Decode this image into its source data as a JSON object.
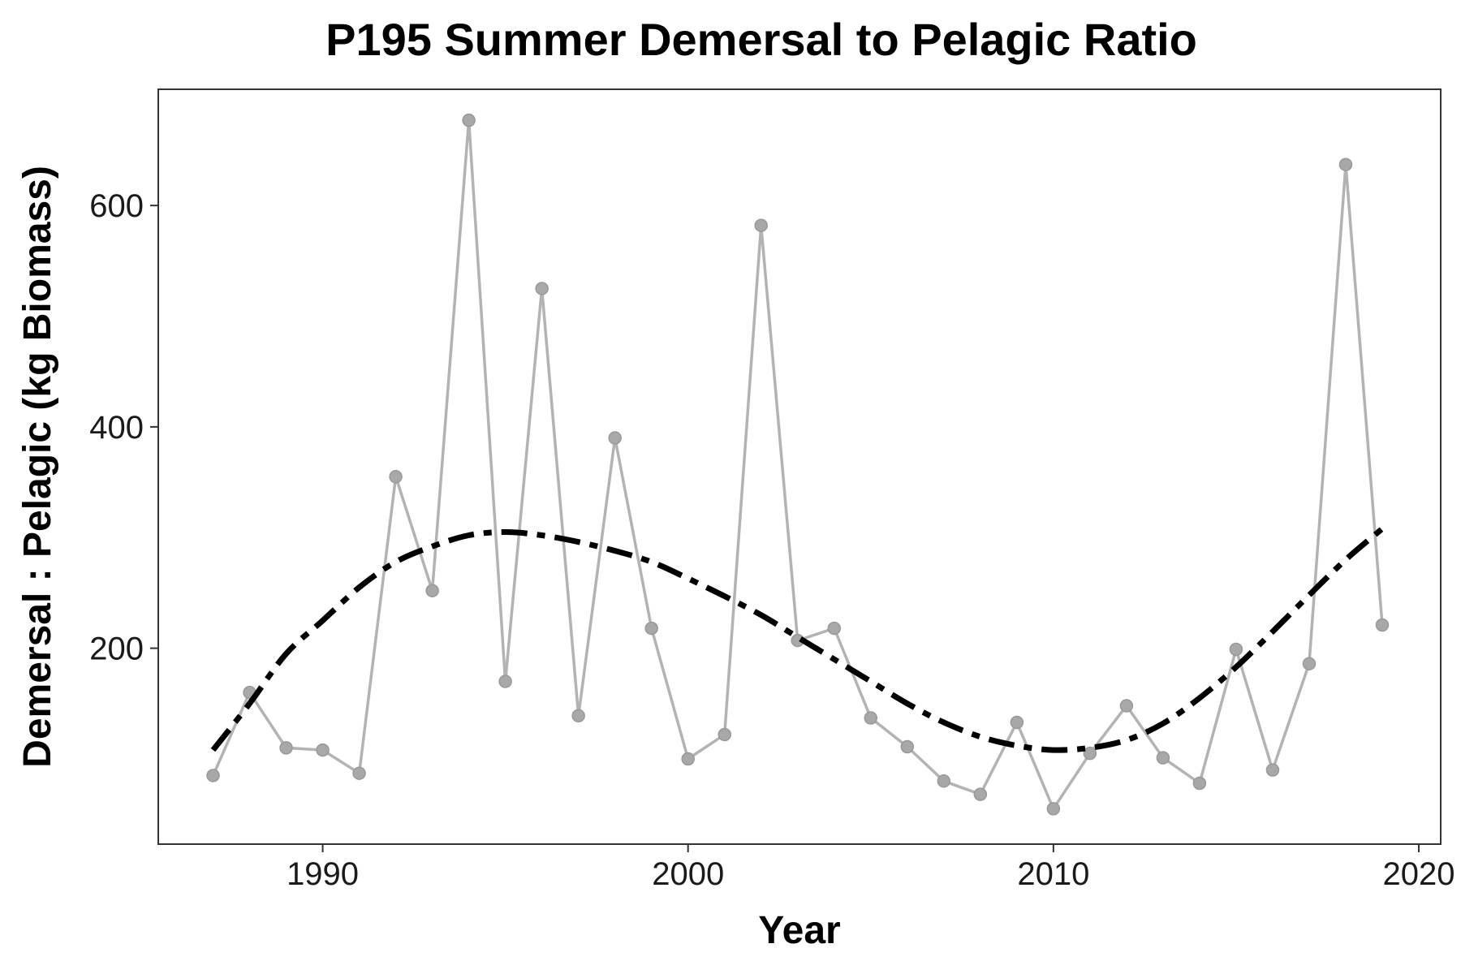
{
  "chart_data": {
    "type": "line",
    "title": "P195 Summer Demersal to Pelagic Ratio",
    "xlabel": "Year",
    "ylabel": "Demersal : Pelagic (kg Biomass)",
    "xlim": [
      1985.5,
      2020.6
    ],
    "ylim": [
      23,
      705
    ],
    "x_ticks": [
      1990,
      2000,
      2010,
      2020
    ],
    "y_ticks": [
      200,
      400,
      600
    ],
    "grid": false,
    "series": [
      {
        "style": "line-with-points",
        "color": "#b3b3b3",
        "x": [
          1987,
          1988,
          1989,
          1990,
          1991,
          1992,
          1993,
          1994,
          1995,
          1996,
          1997,
          1998,
          1999,
          2000,
          2001,
          2002,
          2003,
          2004,
          2005,
          2006,
          2007,
          2008,
          2009,
          2010,
          2011,
          2012,
          2013,
          2014,
          2015,
          2016,
          2017,
          2018,
          2019
        ],
        "values": [
          85,
          160,
          110,
          108,
          87,
          355,
          252,
          677,
          170,
          525,
          139,
          390,
          218,
          100,
          122,
          582,
          207,
          218,
          137,
          111,
          80,
          68,
          133,
          55,
          105,
          148,
          101,
          78,
          199,
          90,
          186,
          637,
          221
        ]
      },
      {
        "style": "dashed-smooth-trend",
        "color": "#000000",
        "x": [
          1987,
          1988,
          1989,
          1990,
          1991,
          1992,
          1993,
          1994,
          1995,
          1996,
          1997,
          1998,
          1999,
          2000,
          2001,
          2002,
          2003,
          2004,
          2005,
          2006,
          2007,
          2008,
          2009,
          2010,
          2011,
          2012,
          2013,
          2014,
          2015,
          2016,
          2017,
          2018,
          2019
        ],
        "values": [
          108,
          150,
          195,
          225,
          255,
          278,
          292,
          302,
          305,
          302,
          296,
          288,
          278,
          263,
          247,
          230,
          210,
          190,
          170,
          150,
          133,
          120,
          112,
          108,
          110,
          117,
          132,
          155,
          183,
          215,
          248,
          280,
          308
        ]
      }
    ]
  }
}
